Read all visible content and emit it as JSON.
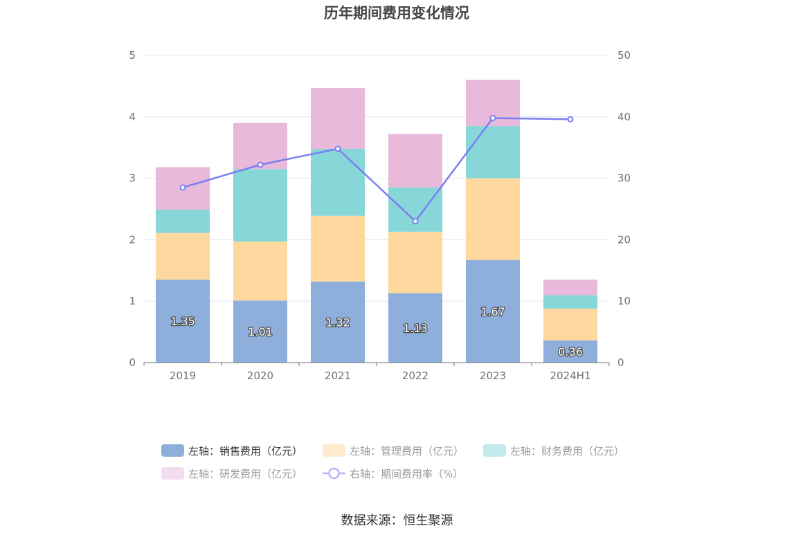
{
  "chart_data": {
    "type": "bar",
    "stacked": true,
    "title": "历年期间费用变化情况",
    "categories": [
      "2019",
      "2020",
      "2021",
      "2022",
      "2023",
      "2024H1"
    ],
    "left_axis": {
      "ylim": [
        0,
        5
      ],
      "ticks": [
        "0",
        "1",
        "2",
        "3",
        "4",
        "5"
      ]
    },
    "right_axis": {
      "ylim": [
        0,
        50
      ],
      "ticks": [
        "0",
        "10",
        "20",
        "30",
        "40",
        "50"
      ]
    },
    "series": [
      {
        "name": "左轴：销售费用（亿元）",
        "axis": "left",
        "color": "#8eaedb",
        "values": [
          1.35,
          1.01,
          1.32,
          1.13,
          1.67,
          0.36
        ],
        "labels": [
          "1.35",
          "1.01",
          "1.32",
          "1.13",
          "1.67",
          "0.36"
        ]
      },
      {
        "name": "左轴：管理费用（亿元）",
        "axis": "left",
        "color": "#fed89e",
        "values": [
          0.76,
          0.96,
          1.07,
          1.0,
          1.33,
          0.52
        ]
      },
      {
        "name": "左轴：财务费用（亿元）",
        "axis": "left",
        "color": "#87d6d8",
        "values": [
          0.38,
          1.18,
          1.09,
          0.72,
          0.85,
          0.22
        ]
      },
      {
        "name": "左轴：研发费用（亿元）",
        "axis": "left",
        "color": "#e8b9db",
        "values": [
          0.69,
          0.75,
          0.99,
          0.87,
          0.75,
          0.25
        ]
      },
      {
        "name": "右轴：期间费用率（%）",
        "axis": "right",
        "type": "line",
        "color": "#7b7ef2",
        "values": [
          28.5,
          32.2,
          34.8,
          23.0,
          39.8,
          39.6
        ]
      }
    ],
    "legend_position": "bottom"
  },
  "source": "数据来源：恒生聚源"
}
